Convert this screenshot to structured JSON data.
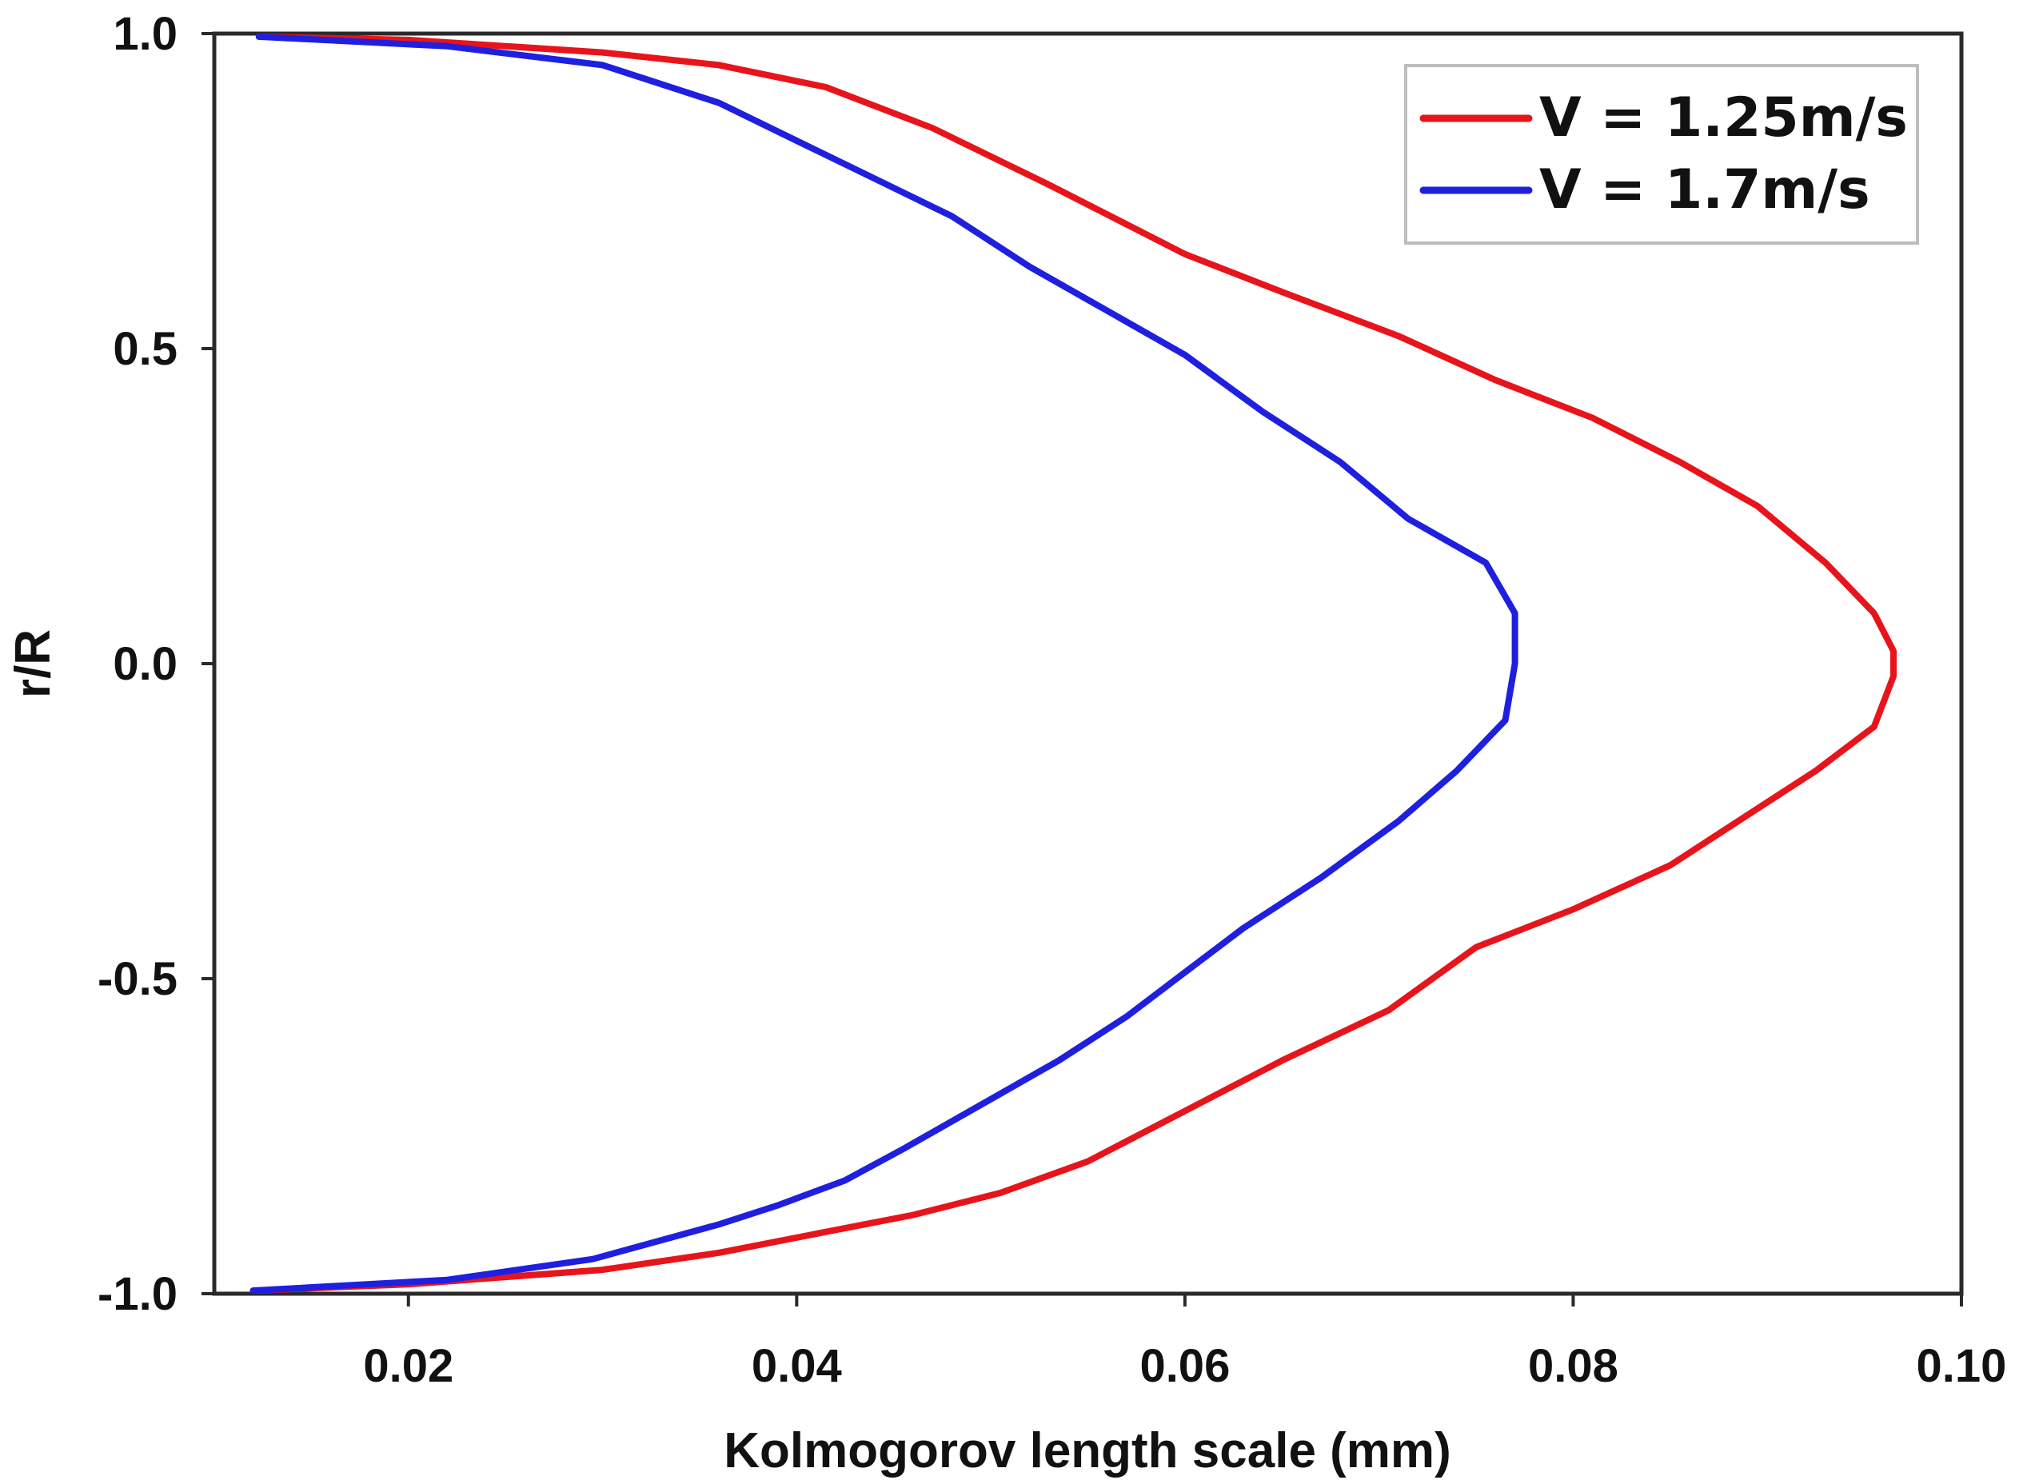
{
  "chart_data": {
    "type": "line",
    "title": "",
    "xlabel": "Kolmogorov length scale (mm)",
    "ylabel": "r/R",
    "xlim": [
      0.01,
      0.1
    ],
    "ylim": [
      -1.0,
      1.0
    ],
    "xticks": [
      0.02,
      0.04,
      0.06,
      0.08,
      0.1
    ],
    "xtick_labels": [
      "0.02",
      "0.04",
      "0.06",
      "0.08",
      "0.10"
    ],
    "yticks": [
      1.0,
      0.5,
      0.0,
      -0.5,
      -1.0
    ],
    "ytick_labels": [
      "1.0",
      "0.5",
      "0.0",
      "-0.5",
      "-1.0"
    ],
    "grid": false,
    "legend_position": "top-right",
    "series": [
      {
        "name": "V = 1.25m/s",
        "color": "#e8141b",
        "points": [
          [
            0.0123,
            0.995
          ],
          [
            0.02,
            0.99
          ],
          [
            0.03,
            0.97
          ],
          [
            0.036,
            0.95
          ],
          [
            0.0415,
            0.915
          ],
          [
            0.047,
            0.85
          ],
          [
            0.053,
            0.76
          ],
          [
            0.06,
            0.65
          ],
          [
            0.065,
            0.59
          ],
          [
            0.071,
            0.52
          ],
          [
            0.076,
            0.45
          ],
          [
            0.081,
            0.39
          ],
          [
            0.0855,
            0.32
          ],
          [
            0.0895,
            0.25
          ],
          [
            0.093,
            0.16
          ],
          [
            0.0955,
            0.08
          ],
          [
            0.0965,
            0.02
          ],
          [
            0.0965,
            -0.02
          ],
          [
            0.0955,
            -0.1
          ],
          [
            0.0925,
            -0.17
          ],
          [
            0.089,
            -0.24
          ],
          [
            0.085,
            -0.32
          ],
          [
            0.08,
            -0.39
          ],
          [
            0.075,
            -0.45
          ],
          [
            0.0705,
            -0.55
          ],
          [
            0.065,
            -0.63
          ],
          [
            0.06,
            -0.71
          ],
          [
            0.055,
            -0.79
          ],
          [
            0.0505,
            -0.84
          ],
          [
            0.046,
            -0.875
          ],
          [
            0.041,
            -0.905
          ],
          [
            0.036,
            -0.935
          ],
          [
            0.03,
            -0.962
          ],
          [
            0.02,
            -0.985
          ],
          [
            0.012,
            -0.995
          ]
        ]
      },
      {
        "name": "V = 1.7m/s",
        "color": "#1f1fe0",
        "points": [
          [
            0.0123,
            0.995
          ],
          [
            0.022,
            0.98
          ],
          [
            0.03,
            0.95
          ],
          [
            0.036,
            0.89
          ],
          [
            0.04,
            0.83
          ],
          [
            0.044,
            0.77
          ],
          [
            0.048,
            0.71
          ],
          [
            0.052,
            0.63
          ],
          [
            0.056,
            0.56
          ],
          [
            0.06,
            0.49
          ],
          [
            0.064,
            0.4
          ],
          [
            0.068,
            0.32
          ],
          [
            0.0715,
            0.23
          ],
          [
            0.0755,
            0.16
          ],
          [
            0.077,
            0.08
          ],
          [
            0.077,
            0.0
          ],
          [
            0.0765,
            -0.09
          ],
          [
            0.074,
            -0.17
          ],
          [
            0.071,
            -0.25
          ],
          [
            0.067,
            -0.34
          ],
          [
            0.063,
            -0.42
          ],
          [
            0.06,
            -0.49
          ],
          [
            0.057,
            -0.56
          ],
          [
            0.0535,
            -0.63
          ],
          [
            0.0495,
            -0.7
          ],
          [
            0.0455,
            -0.77
          ],
          [
            0.0425,
            -0.82
          ],
          [
            0.039,
            -0.86
          ],
          [
            0.036,
            -0.89
          ],
          [
            0.0295,
            -0.945
          ],
          [
            0.022,
            -0.978
          ],
          [
            0.012,
            -0.995
          ]
        ]
      }
    ]
  }
}
